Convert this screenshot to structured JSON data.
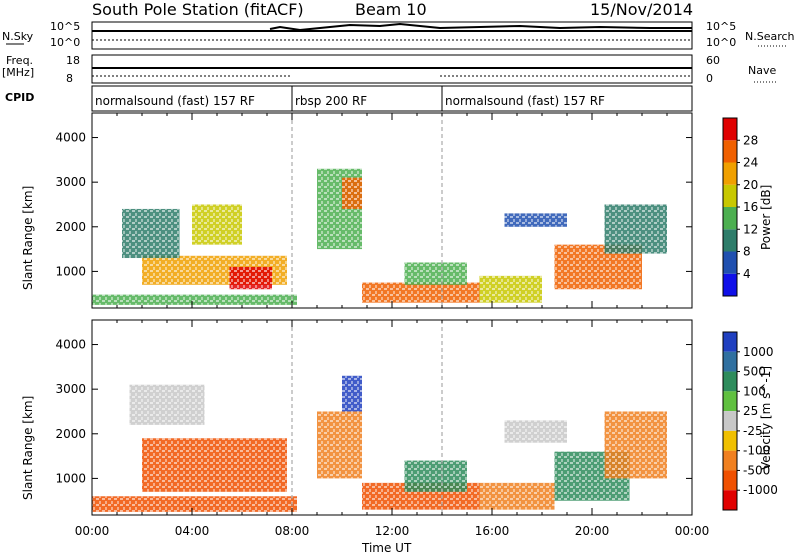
{
  "header": {
    "title": "South Pole Station (fitACF)",
    "beam": "Beam 10",
    "date": "15/Nov/2014"
  },
  "panel_labels": {
    "nsky": "N.Sky",
    "nsky_ticks": [
      "10^5",
      "10^0"
    ],
    "nsearch": "N.Search",
    "freq": "Freq.",
    "freq_unit": "[MHz]",
    "freq_ticks": [
      "18",
      "8"
    ],
    "nave_ticks": [
      "60",
      "0"
    ],
    "nave": "Nave",
    "cpid": "CPID"
  },
  "cpid_modes": [
    {
      "label": "normalsound (fast) 157 RF",
      "start_hour": 0,
      "end_hour": 8
    },
    {
      "label": "rbsp 200 RF",
      "start_hour": 8,
      "end_hour": 14
    },
    {
      "label": "normalsound (fast) 157 RF",
      "start_hour": 14,
      "end_hour": 24
    }
  ],
  "chart_data": [
    {
      "type": "heatmap",
      "name": "power",
      "ylabel": "Slant Range [km]",
      "xlim": [
        0,
        24
      ],
      "ylim": [
        180,
        4550
      ],
      "yticks": [
        "1000",
        "2000",
        "3000",
        "4000"
      ],
      "colorbar": {
        "label": "Power [dB]",
        "ticks": [
          "4",
          "8",
          "12",
          "16",
          "20",
          "24",
          "28"
        ],
        "colors": [
          "#1010e8",
          "#2050b0",
          "#2e7d6a",
          "#4caf50",
          "#c8c800",
          "#f0a000",
          "#f06000",
          "#e00000"
        ]
      },
      "regions": [
        {
          "x": [
            0.0,
            8.2
          ],
          "y": [
            250,
            480
          ],
          "level": 3
        },
        {
          "x": [
            2.0,
            7.8
          ],
          "y": [
            700,
            1350
          ],
          "level": 5
        },
        {
          "x": [
            5.5,
            7.2
          ],
          "y": [
            600,
            1100
          ],
          "level": 7
        },
        {
          "x": [
            1.2,
            3.5
          ],
          "y": [
            1300,
            2400
          ],
          "level": 2
        },
        {
          "x": [
            4.0,
            6.0
          ],
          "y": [
            1600,
            2500
          ],
          "level": 4
        },
        {
          "x": [
            9.0,
            10.8
          ],
          "y": [
            1500,
            3300
          ],
          "level": 3
        },
        {
          "x": [
            10.0,
            10.8
          ],
          "y": [
            2400,
            3100
          ],
          "level": 6
        },
        {
          "x": [
            10.8,
            15.5
          ],
          "y": [
            300,
            750
          ],
          "level": 6
        },
        {
          "x": [
            12.5,
            15.0
          ],
          "y": [
            700,
            1200
          ],
          "level": 3
        },
        {
          "x": [
            16.5,
            19.0
          ],
          "y": [
            2000,
            2300
          ],
          "level": 1
        },
        {
          "x": [
            18.5,
            22.0
          ],
          "y": [
            600,
            1600
          ],
          "level": 6
        },
        {
          "x": [
            20.5,
            23.0
          ],
          "y": [
            1400,
            2500
          ],
          "level": 2
        },
        {
          "x": [
            15.5,
            18.0
          ],
          "y": [
            300,
            900
          ],
          "level": 4
        }
      ]
    },
    {
      "type": "heatmap",
      "name": "velocity",
      "ylabel": "Slant Range [km]",
      "xlabel": "Time UT",
      "xlim": [
        0,
        24
      ],
      "ylim": [
        180,
        4550
      ],
      "xticks": [
        "00:00",
        "04:00",
        "08:00",
        "12:00",
        "16:00",
        "20:00",
        "00:00"
      ],
      "yticks": [
        "1000",
        "2000",
        "3000",
        "4000"
      ],
      "colorbar": {
        "label": "Velocity [m s^-1]",
        "ticks": [
          "1000",
          "500",
          "100",
          "25",
          "-25",
          "-100",
          "-500",
          "-1000"
        ],
        "colors": [
          "#2040c0",
          "#3070a0",
          "#2e8c5c",
          "#60c040",
          "#c8c8c8",
          "#f0c000",
          "#f08020",
          "#f05000",
          "#e00000"
        ]
      },
      "regions": [
        {
          "x": [
            0.0,
            8.2
          ],
          "y": [
            250,
            600
          ],
          "level": 7
        },
        {
          "x": [
            2.0,
            7.8
          ],
          "y": [
            700,
            1900
          ],
          "level": 7
        },
        {
          "x": [
            1.5,
            4.5
          ],
          "y": [
            2200,
            3100
          ],
          "level": 4
        },
        {
          "x": [
            9.0,
            10.8
          ],
          "y": [
            1000,
            2500
          ],
          "level": 6
        },
        {
          "x": [
            10.0,
            10.8
          ],
          "y": [
            2500,
            3300
          ],
          "level": 0
        },
        {
          "x": [
            10.8,
            15.5
          ],
          "y": [
            300,
            900
          ],
          "level": 7
        },
        {
          "x": [
            12.5,
            15.0
          ],
          "y": [
            700,
            1400
          ],
          "level": 2
        },
        {
          "x": [
            16.5,
            19.0
          ],
          "y": [
            1800,
            2300
          ],
          "level": 4
        },
        {
          "x": [
            18.5,
            21.5
          ],
          "y": [
            500,
            1600
          ],
          "level": 2
        },
        {
          "x": [
            15.5,
            18.5
          ],
          "y": [
            300,
            900
          ],
          "level": 6
        },
        {
          "x": [
            20.5,
            23.0
          ],
          "y": [
            1000,
            2500
          ],
          "level": 6
        }
      ]
    }
  ]
}
